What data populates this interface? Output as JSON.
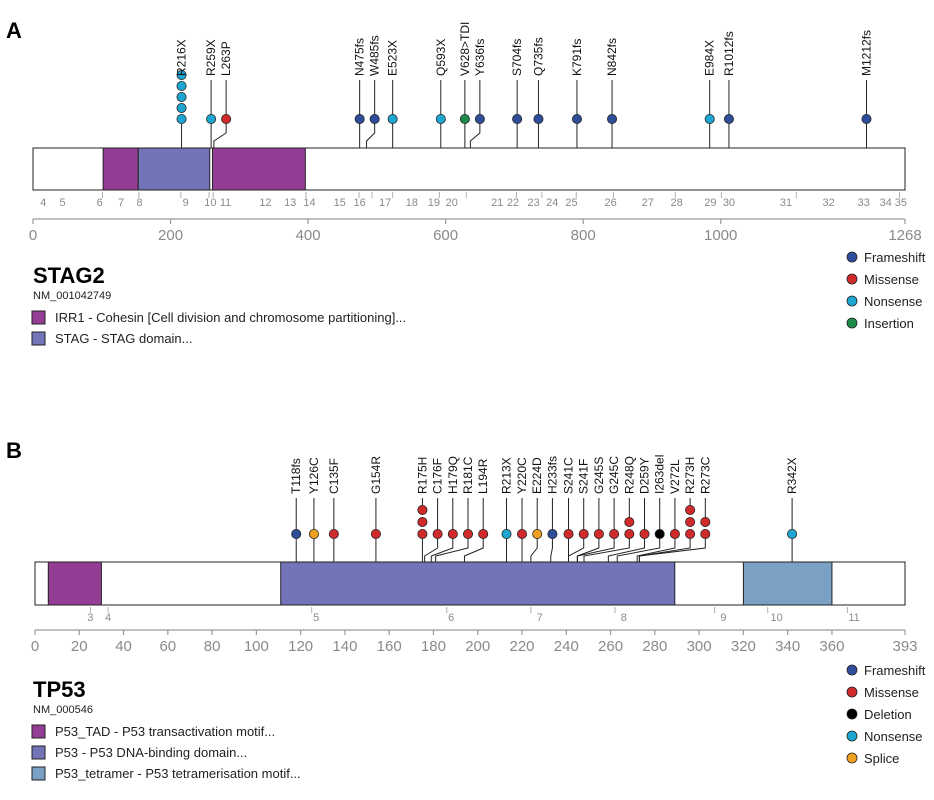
{
  "colors": {
    "frameshift": "#2f4d9a",
    "missense": "#d02a2a",
    "nonsense": "#1ea6d2",
    "insertion": "#1d8c4a",
    "deletion": "#000000",
    "splice": "#f0a020",
    "domain_magenta": "#943d94",
    "domain_purple": "#7373b8",
    "domain_steel": "#7aa0c4",
    "axis": "#9a9a9a"
  },
  "panels": [
    {
      "letter": "A",
      "gene": "STAG2",
      "transcript": "NM_001042749",
      "length": 1268,
      "axis_ticks": [
        0,
        200,
        400,
        600,
        800,
        1000,
        1268
      ],
      "domains": [
        {
          "start": 102,
          "end": 153,
          "type": "IRR1"
        },
        {
          "start": 153,
          "end": 257,
          "type": "STAG"
        },
        {
          "start": 261,
          "end": 396,
          "type": "IRR1"
        }
      ],
      "domain_legend": [
        {
          "label": "IRR1 - Cohesin [Cell division and chromosome partitioning]...",
          "color_key": "domain_magenta"
        },
        {
          "label": "STAG - STAG domain...",
          "color_key": "domain_purple"
        }
      ],
      "exon_boundaries": [
        101,
        154,
        215,
        256,
        262,
        397,
        474,
        493,
        523,
        591,
        630,
        703,
        740,
        790,
        844,
        934,
        1001,
        1110,
        1260
      ],
      "exons": [
        {
          "label": "4",
          "pos": 15
        },
        {
          "label": "5",
          "pos": 43
        },
        {
          "label": "6",
          "pos": 97
        },
        {
          "label": "7",
          "pos": 128
        },
        {
          "label": "8",
          "pos": 155
        },
        {
          "label": "9",
          "pos": 222
        },
        {
          "label": "10",
          "pos": 258
        },
        {
          "label": "11",
          "pos": 280
        },
        {
          "label": "12",
          "pos": 338
        },
        {
          "label": "13",
          "pos": 374
        },
        {
          "label": "14",
          "pos": 402
        },
        {
          "label": "15",
          "pos": 446
        },
        {
          "label": "16",
          "pos": 475
        },
        {
          "label": "17",
          "pos": 512
        },
        {
          "label": "18",
          "pos": 551
        },
        {
          "label": "19",
          "pos": 583
        },
        {
          "label": "20",
          "pos": 609
        },
        {
          "label": "21",
          "pos": 675
        },
        {
          "label": "22",
          "pos": 698
        },
        {
          "label": "23",
          "pos": 728
        },
        {
          "label": "24",
          "pos": 755
        },
        {
          "label": "25",
          "pos": 783
        },
        {
          "label": "26",
          "pos": 840
        },
        {
          "label": "27",
          "pos": 894
        },
        {
          "label": "28",
          "pos": 936
        },
        {
          "label": "29",
          "pos": 985
        },
        {
          "label": "30",
          "pos": 1012
        },
        {
          "label": "31",
          "pos": 1095
        },
        {
          "label": "32",
          "pos": 1157
        },
        {
          "label": "33",
          "pos": 1208
        },
        {
          "label": "34",
          "pos": 1240
        },
        {
          "label": "35",
          "pos": 1262
        }
      ],
      "mutations": [
        {
          "label": "R216X",
          "pos": 216,
          "type": "nonsense",
          "count": 5
        },
        {
          "label": "R259X",
          "pos": 259,
          "type": "nonsense",
          "count": 1
        },
        {
          "label": "L263P",
          "pos": 263,
          "type": "missense",
          "count": 1
        },
        {
          "label": "N475fs",
          "pos": 475,
          "type": "frameshift",
          "count": 1
        },
        {
          "label": "W485fs",
          "pos": 485,
          "type": "frameshift",
          "count": 1
        },
        {
          "label": "E523X",
          "pos": 523,
          "type": "nonsense",
          "count": 1
        },
        {
          "label": "Q593X",
          "pos": 593,
          "type": "nonsense",
          "count": 1
        },
        {
          "label": "V628>TDI",
          "pos": 628,
          "type": "insertion",
          "count": 1
        },
        {
          "label": "Y636fs",
          "pos": 636,
          "type": "frameshift",
          "count": 1
        },
        {
          "label": "S704fs",
          "pos": 704,
          "type": "frameshift",
          "count": 1
        },
        {
          "label": "Q735fs",
          "pos": 735,
          "type": "frameshift",
          "count": 1
        },
        {
          "label": "K791fs",
          "pos": 791,
          "type": "frameshift",
          "count": 1
        },
        {
          "label": "N842fs",
          "pos": 842,
          "type": "frameshift",
          "count": 1
        },
        {
          "label": "E984X",
          "pos": 984,
          "type": "nonsense",
          "count": 1
        },
        {
          "label": "R1012fs",
          "pos": 1012,
          "type": "frameshift",
          "count": 1
        },
        {
          "label": "M1212fs",
          "pos": 1212,
          "type": "frameshift",
          "count": 1
        }
      ],
      "legend": [
        {
          "label": "Frameshift",
          "color_key": "frameshift"
        },
        {
          "label": "Missense",
          "color_key": "missense"
        },
        {
          "label": "Nonsense",
          "color_key": "nonsense"
        },
        {
          "label": "Insertion",
          "color_key": "insertion"
        }
      ]
    },
    {
      "letter": "B",
      "gene": "TP53",
      "transcript": "NM_000546",
      "length": 393,
      "axis_ticks": [
        0,
        20,
        40,
        60,
        80,
        100,
        120,
        140,
        160,
        180,
        200,
        220,
        240,
        260,
        280,
        300,
        320,
        340,
        360,
        393
      ],
      "domains": [
        {
          "start": 6,
          "end": 30,
          "type": "TAD"
        },
        {
          "start": 111,
          "end": 289,
          "type": "DBD"
        },
        {
          "start": 320,
          "end": 360,
          "type": "TET"
        }
      ],
      "domain_legend": [
        {
          "label": "P53_TAD - P53 transactivation motif...",
          "color_key": "domain_magenta"
        },
        {
          "label": "P53 - P53 DNA-binding domain...",
          "color_key": "domain_purple"
        },
        {
          "label": "P53_tetramer - P53 tetramerisation motif...",
          "color_key": "domain_steel"
        }
      ],
      "exon_boundaries": [
        25,
        33,
        125,
        186,
        224,
        262,
        307,
        331,
        367
      ],
      "exons": [
        {
          "label": "3",
          "pos": 25
        },
        {
          "label": "4",
          "pos": 33
        },
        {
          "label": "5",
          "pos": 127
        },
        {
          "label": "6",
          "pos": 188
        },
        {
          "label": "7",
          "pos": 228
        },
        {
          "label": "8",
          "pos": 266
        },
        {
          "label": "9",
          "pos": 311
        },
        {
          "label": "10",
          "pos": 335
        },
        {
          "label": "11",
          "pos": 370
        }
      ],
      "mutations": [
        {
          "label": "T118fs",
          "pos": 118,
          "type": "frameshift",
          "count": 1
        },
        {
          "label": "Y126C",
          "pos": 126,
          "type": "splice",
          "count": 1
        },
        {
          "label": "C135F",
          "pos": 135,
          "type": "missense",
          "count": 1
        },
        {
          "label": "G154R",
          "pos": 154,
          "type": "missense",
          "count": 1
        },
        {
          "label": "R175H",
          "pos": 175,
          "type": "missense",
          "count": 3
        },
        {
          "label": "C176F",
          "pos": 176,
          "type": "missense",
          "count": 1
        },
        {
          "label": "H179Q",
          "pos": 179,
          "type": "missense",
          "count": 1
        },
        {
          "label": "R181C",
          "pos": 181,
          "type": "missense",
          "count": 1
        },
        {
          "label": "L194R",
          "pos": 194,
          "type": "missense",
          "count": 1
        },
        {
          "label": "R213X",
          "pos": 213,
          "type": "nonsense",
          "count": 1
        },
        {
          "label": "Y220C",
          "pos": 220,
          "type": "missense",
          "count": 1
        },
        {
          "label": "E224D",
          "pos": 224,
          "type": "splice",
          "count": 1
        },
        {
          "label": "H233fs",
          "pos": 233,
          "type": "frameshift",
          "count": 1
        },
        {
          "label": "S241C",
          "pos": 241,
          "type": "missense",
          "count": 1
        },
        {
          "label": "S241F",
          "pos": 241,
          "type": "missense",
          "count": 1
        },
        {
          "label": "G245S",
          "pos": 245,
          "type": "missense",
          "count": 1
        },
        {
          "label": "G245C",
          "pos": 245,
          "type": "missense",
          "count": 1
        },
        {
          "label": "R248Q",
          "pos": 248,
          "type": "missense",
          "count": 2
        },
        {
          "label": "D259Y",
          "pos": 259,
          "type": "missense",
          "count": 1
        },
        {
          "label": "I263del",
          "pos": 263,
          "type": "deletion",
          "count": 1
        },
        {
          "label": "V272L",
          "pos": 272,
          "type": "missense",
          "count": 1
        },
        {
          "label": "R273H",
          "pos": 273,
          "type": "missense",
          "count": 3
        },
        {
          "label": "R273C",
          "pos": 273,
          "type": "missense",
          "count": 2
        },
        {
          "label": "R342X",
          "pos": 342,
          "type": "nonsense",
          "count": 1
        }
      ],
      "legend": [
        {
          "label": "Frameshift",
          "color_key": "frameshift"
        },
        {
          "label": "Missense",
          "color_key": "missense"
        },
        {
          "label": "Deletion",
          "color_key": "deletion"
        },
        {
          "label": "Nonsense",
          "color_key": "nonsense"
        },
        {
          "label": "Splice",
          "color_key": "splice"
        }
      ]
    }
  ]
}
